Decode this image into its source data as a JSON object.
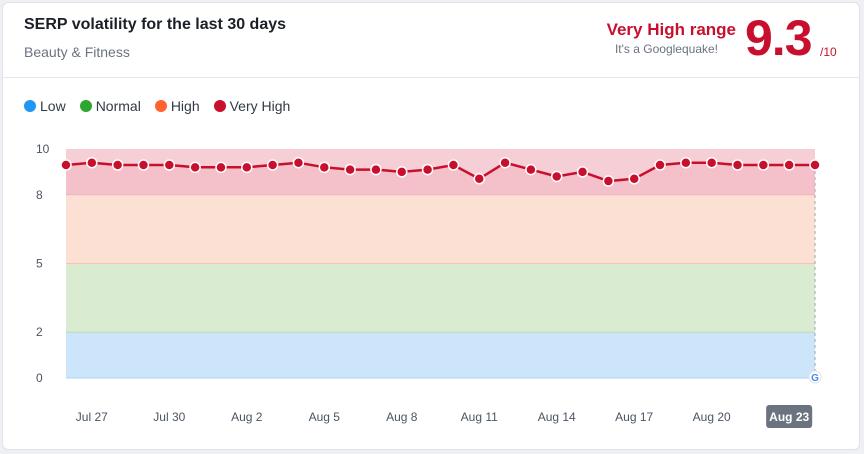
{
  "header": {
    "title": "SERP volatility for the last 30 days",
    "subtitle": "Beauty & Fitness",
    "range_label": "Very High range",
    "range_sub": "It's a Googlequake!",
    "score": "9.3",
    "score_max": "/10"
  },
  "legend": [
    {
      "label": "Low",
      "color": "#2196f3"
    },
    {
      "label": "Normal",
      "color": "#2ea52e"
    },
    {
      "label": "High",
      "color": "#ff642d"
    },
    {
      "label": "Very High",
      "color": "#c8102e"
    }
  ],
  "chart_data": {
    "type": "line",
    "ylim": [
      0,
      10
    ],
    "yticks": [
      0,
      2,
      5,
      8,
      10
    ],
    "bands": [
      {
        "from": 0,
        "to": 2,
        "color": "#cce5fb",
        "border": "#a9d2f5"
      },
      {
        "from": 2,
        "to": 5,
        "color": "#d9ecd2",
        "border": "#bcdcb0"
      },
      {
        "from": 5,
        "to": 8,
        "color": "#fde0d4",
        "border": "#f6c5b1"
      },
      {
        "from": 8,
        "to": 10,
        "color": "#f6cfd6",
        "border": "#edb3be"
      }
    ],
    "x_labels": [
      "Jul 27",
      "Jul 30",
      "Aug 2",
      "Aug 5",
      "Aug 8",
      "Aug 11",
      "Aug 14",
      "Aug 17",
      "Aug 20",
      "Aug 23"
    ],
    "x_label_positions": [
      1,
      4,
      7,
      10,
      13,
      16,
      19,
      22,
      25,
      28
    ],
    "highlighted_label": "Aug 23",
    "line_color": "#c8102e",
    "values": [
      9.3,
      9.4,
      9.3,
      9.3,
      9.3,
      9.2,
      9.2,
      9.2,
      9.3,
      9.4,
      9.2,
      9.1,
      9.1,
      9.0,
      9.1,
      9.3,
      8.7,
      9.4,
      9.1,
      8.8,
      9.0,
      8.6,
      8.7,
      9.3,
      9.4,
      9.4,
      9.3,
      9.3,
      9.3,
      9.3
    ]
  }
}
